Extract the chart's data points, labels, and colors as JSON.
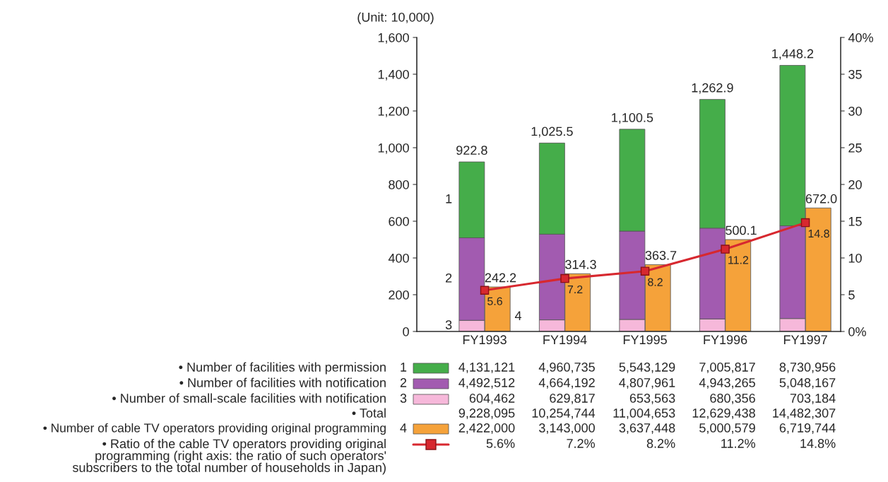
{
  "chart_data": [
    {
      "type": "bar",
      "stacked": true,
      "ylabel": "(Unit: 10,000)",
      "categories": [
        "FY1993",
        "FY1994",
        "FY1995",
        "FY1996",
        "FY1997"
      ],
      "ylim": [
        0,
        1600
      ],
      "yticks": [
        0,
        200,
        400,
        600,
        800,
        {
          "value": 1000,
          "label": "1,000"
        },
        {
          "value": 1200,
          "label": "1,200"
        },
        {
          "value": 1400,
          "label": "1,400"
        },
        {
          "value": 1600,
          "label": "1,600"
        }
      ],
      "y2lim": [
        0,
        40
      ],
      "y2ticks": [
        {
          "value": 0,
          "label": "0%"
        },
        5,
        10,
        15,
        20,
        25,
        30,
        35,
        {
          "value": 40,
          "label": "40%"
        }
      ],
      "series": [
        {
          "name": "• Number of small-scale facilities with notification",
          "color": "#f6b8da",
          "values": [
            60.4,
            63.0,
            65.4,
            68.0,
            70.3
          ]
        },
        {
          "name": "• Number of facilities with notification",
          "color": "#a25bb0",
          "values": [
            449.3,
            466.4,
            480.8,
            494.3,
            504.8
          ]
        },
        {
          "name": "• Number of facilities with permission",
          "color": "#45ad4a",
          "values": [
            413.1,
            496.1,
            554.3,
            700.6,
            873.1
          ]
        },
        {
          "name": "• Ratio of the cable TV operators providing original\nprogramming (right axis: the ratio of such operators'\nsubscribers to the total number of households in Japan)",
          "type": "line",
          "axis": "y2",
          "marker": "square",
          "line_style": "solid",
          "color": "#d7282f",
          "values": [
            5.6,
            7.2,
            8.2,
            11.2,
            14.8
          ],
          "value_labels": [
            "5.6",
            "7.2",
            "8.2",
            "11.2",
            "14.8"
          ]
        }
      ],
      "totals": [
        "922.8",
        "1,025.5",
        "1,100.5",
        "1,262.9",
        "1,448.2"
      ],
      "annotations": [
        "1",
        "2",
        "3",
        "4,131,121",
        "4,960,735",
        "5,543,129",
        "7,005,817",
        "8,730,956",
        "4,492,512",
        "4,664,192",
        "4,807,961",
        "4,943,265",
        "5,048,167",
        "604,462",
        "629,817",
        "653,563",
        "680,356",
        "703,184",
        "• Total",
        "9,228,095",
        "10,254,744",
        "11,004,653",
        "12,629,438",
        "14,482,307",
        "5.6%",
        "7.2%",
        "8.2%",
        "11.2%",
        "14.8%"
      ],
      "grid": false,
      "legend": "bottom left"
    },
    {
      "type": "bar",
      "categories": [
        "FY1993",
        "FY1994",
        "FY1995",
        "FY1996",
        "FY1997"
      ],
      "ylim": [
        0,
        1600
      ],
      "tick_labels": false,
      "series": [
        {
          "name": "• Number of cable TV operators providing original programming",
          "color": "#f5a23a",
          "values": [
            242.2,
            314.3,
            363.7,
            500.1,
            672.0
          ],
          "value_labels": [
            "242.2",
            "314.3",
            "363.7",
            "500.1",
            "672.0"
          ]
        }
      ],
      "annotations": [
        "4",
        "2,422,000",
        "3,143,000",
        "3,637,448",
        "5,000,579",
        "6,719,744"
      ]
    }
  ]
}
